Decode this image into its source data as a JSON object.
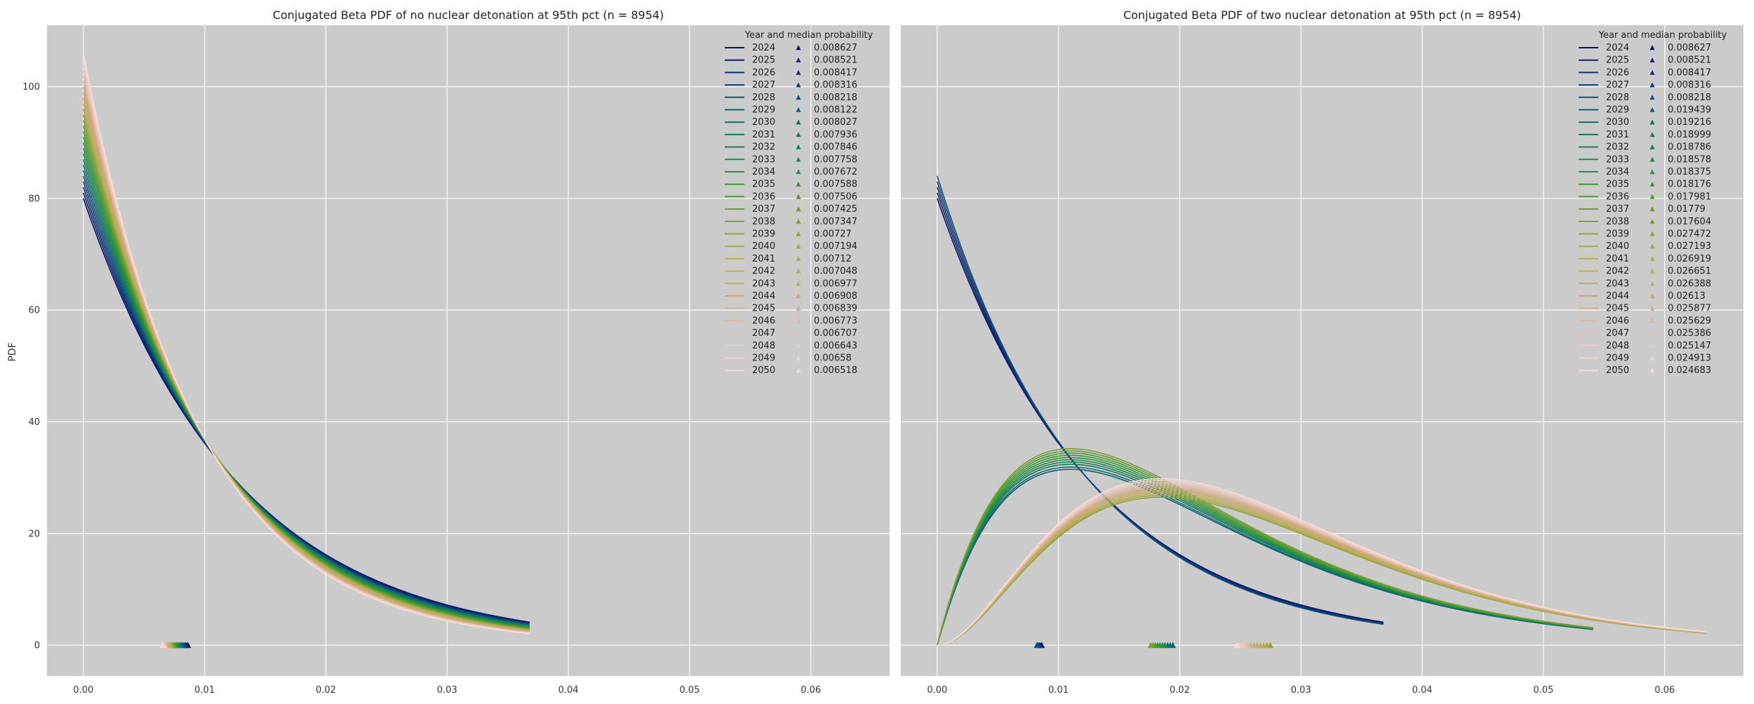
{
  "figure": {
    "ylabel": "PDF"
  },
  "colors": {
    "panel_bg": "#cbcbcb",
    "grid": "#f4f4f4",
    "year_gradient": [
      "#0b1268",
      "#0d3d7a",
      "#0f6a72",
      "#1b8a4a",
      "#3f9a2e",
      "#8a9e3a",
      "#b8b057",
      "#cfa678",
      "#e6c2b8",
      "#f6dcd6"
    ]
  },
  "chart_data": [
    {
      "type": "line",
      "title": "Conjugated Beta PDF of no nuclear detonation at 95th pct (n = 8954)",
      "xlabel": "",
      "ylabel": "PDF",
      "xlim": [
        -0.003,
        0.0665
      ],
      "ylim": [
        -5.5,
        111
      ],
      "xticks": [
        "0.00",
        "0.01",
        "0.02",
        "0.03",
        "0.04",
        "0.05",
        "0.06"
      ],
      "yticks": [
        "0",
        "20",
        "40",
        "60",
        "80",
        "100"
      ],
      "grid": true,
      "legend": {
        "title": "Year and median probability",
        "placement": "top-right"
      },
      "curve_family": "beta(1, b)",
      "x_max": 0.0368,
      "series": [
        {
          "name": "2024",
          "median": "0.008627",
          "alpha": 1,
          "peak": 80.0
        },
        {
          "name": "2025",
          "median": "0.008521",
          "alpha": 1,
          "peak": 81.0
        },
        {
          "name": "2026",
          "median": "0.008417",
          "alpha": 1,
          "peak": 82.0
        },
        {
          "name": "2027",
          "median": "0.008316",
          "alpha": 1,
          "peak": 83.0
        },
        {
          "name": "2028",
          "median": "0.008218",
          "alpha": 1,
          "peak": 84.0
        },
        {
          "name": "2029",
          "median": "0.008122",
          "alpha": 1,
          "peak": 85.0
        },
        {
          "name": "2030",
          "median": "0.008027",
          "alpha": 1,
          "peak": 86.0
        },
        {
          "name": "2031",
          "median": "0.007936",
          "alpha": 1,
          "peak": 87.0
        },
        {
          "name": "2032",
          "median": "0.007846",
          "alpha": 1,
          "peak": 88.0
        },
        {
          "name": "2033",
          "median": "0.007758",
          "alpha": 1,
          "peak": 89.0
        },
        {
          "name": "2034",
          "median": "0.007672",
          "alpha": 1,
          "peak": 90.0
        },
        {
          "name": "2035",
          "median": "0.007588",
          "alpha": 1,
          "peak": 91.0
        },
        {
          "name": "2036",
          "median": "0.007506",
          "alpha": 1,
          "peak": 92.0
        },
        {
          "name": "2037",
          "median": "0.007425",
          "alpha": 1,
          "peak": 93.0
        },
        {
          "name": "2038",
          "median": "0.007347",
          "alpha": 1,
          "peak": 94.0
        },
        {
          "name": "2039",
          "median": "0.00727",
          "alpha": 1,
          "peak": 95.0
        },
        {
          "name": "2040",
          "median": "0.007194",
          "alpha": 1,
          "peak": 96.0
        },
        {
          "name": "2041",
          "median": "0.00712",
          "alpha": 1,
          "peak": 97.0
        },
        {
          "name": "2042",
          "median": "0.007048",
          "alpha": 1,
          "peak": 98.0
        },
        {
          "name": "2043",
          "median": "0.006977",
          "alpha": 1,
          "peak": 99.0
        },
        {
          "name": "2044",
          "median": "0.006908",
          "alpha": 1,
          "peak": 100.0
        },
        {
          "name": "2045",
          "median": "0.006839",
          "alpha": 1,
          "peak": 101.0
        },
        {
          "name": "2046",
          "median": "0.006773",
          "alpha": 1,
          "peak": 102.0
        },
        {
          "name": "2047",
          "median": "0.006707",
          "alpha": 1,
          "peak": 103.0
        },
        {
          "name": "2048",
          "median": "0.006643",
          "alpha": 1,
          "peak": 104.0
        },
        {
          "name": "2049",
          "median": "0.00658",
          "alpha": 1,
          "peak": 105.0
        },
        {
          "name": "2050",
          "median": "0.006518",
          "alpha": 1,
          "peak": 106.0
        }
      ]
    },
    {
      "type": "line",
      "title": "Conjugated Beta PDF of two nuclear detonation at 95th pct (n = 8954)",
      "xlabel": "",
      "ylabel": "",
      "xlim": [
        -0.003,
        0.0665
      ],
      "ylim": [
        -5.5,
        111
      ],
      "xticks": [
        "0.00",
        "0.01",
        "0.02",
        "0.03",
        "0.04",
        "0.05",
        "0.06"
      ],
      "yticks": [],
      "grid": true,
      "legend": {
        "title": "Year and median probability",
        "placement": "top-right"
      },
      "series": [
        {
          "name": "2024",
          "median": "0.008627",
          "alpha": 1,
          "peak": 80.0,
          "x_max": 0.0368
        },
        {
          "name": "2025",
          "median": "0.008521",
          "alpha": 1,
          "peak": 81.0,
          "x_max": 0.0368
        },
        {
          "name": "2026",
          "median": "0.008417",
          "alpha": 1,
          "peak": 82.0,
          "x_max": 0.0368
        },
        {
          "name": "2027",
          "median": "0.008316",
          "alpha": 1,
          "peak": 83.0,
          "x_max": 0.0368
        },
        {
          "name": "2028",
          "median": "0.008218",
          "alpha": 1,
          "peak": 84.0,
          "x_max": 0.0368
        },
        {
          "name": "2029",
          "median": "0.019439",
          "alpha": 2,
          "peak": 31.5,
          "x_max": 0.0541
        },
        {
          "name": "2030",
          "median": "0.019216",
          "alpha": 2,
          "peak": 31.9,
          "x_max": 0.0541
        },
        {
          "name": "2031",
          "median": "0.018999",
          "alpha": 2,
          "peak": 32.4,
          "x_max": 0.0541
        },
        {
          "name": "2032",
          "median": "0.018786",
          "alpha": 2,
          "peak": 32.8,
          "x_max": 0.0541
        },
        {
          "name": "2033",
          "median": "0.018578",
          "alpha": 2,
          "peak": 33.2,
          "x_max": 0.0541
        },
        {
          "name": "2034",
          "median": "0.018375",
          "alpha": 2,
          "peak": 33.6,
          "x_max": 0.0541
        },
        {
          "name": "2035",
          "median": "0.018176",
          "alpha": 2,
          "peak": 34.0,
          "x_max": 0.0541
        },
        {
          "name": "2036",
          "median": "0.017981",
          "alpha": 2,
          "peak": 34.4,
          "x_max": 0.0541
        },
        {
          "name": "2037",
          "median": "0.01779",
          "alpha": 2,
          "peak": 34.8,
          "x_max": 0.0541
        },
        {
          "name": "2038",
          "median": "0.017604",
          "alpha": 2,
          "peak": 35.2,
          "x_max": 0.0541
        },
        {
          "name": "2039",
          "median": "0.027472",
          "alpha": 3,
          "peak": 26.5,
          "x_max": 0.0634
        },
        {
          "name": "2040",
          "median": "0.027193",
          "alpha": 3,
          "peak": 26.8,
          "x_max": 0.0634
        },
        {
          "name": "2041",
          "median": "0.026919",
          "alpha": 3,
          "peak": 27.1,
          "x_max": 0.0634
        },
        {
          "name": "2042",
          "median": "0.026651",
          "alpha": 3,
          "peak": 27.4,
          "x_max": 0.0634
        },
        {
          "name": "2043",
          "median": "0.026388",
          "alpha": 3,
          "peak": 27.7,
          "x_max": 0.0634
        },
        {
          "name": "2044",
          "median": "0.02613",
          "alpha": 3,
          "peak": 28.0,
          "x_max": 0.0634
        },
        {
          "name": "2045",
          "median": "0.025877",
          "alpha": 3,
          "peak": 28.3,
          "x_max": 0.0634
        },
        {
          "name": "2046",
          "median": "0.025629",
          "alpha": 3,
          "peak": 28.6,
          "x_max": 0.0634
        },
        {
          "name": "2047",
          "median": "0.025386",
          "alpha": 3,
          "peak": 28.9,
          "x_max": 0.0634
        },
        {
          "name": "2048",
          "median": "0.025147",
          "alpha": 3,
          "peak": 29.2,
          "x_max": 0.0634
        },
        {
          "name": "2049",
          "median": "0.024913",
          "alpha": 3,
          "peak": 29.5,
          "x_max": 0.0634
        },
        {
          "name": "2050",
          "median": "0.024683",
          "alpha": 3,
          "peak": 29.8,
          "x_max": 0.0634
        }
      ]
    }
  ]
}
